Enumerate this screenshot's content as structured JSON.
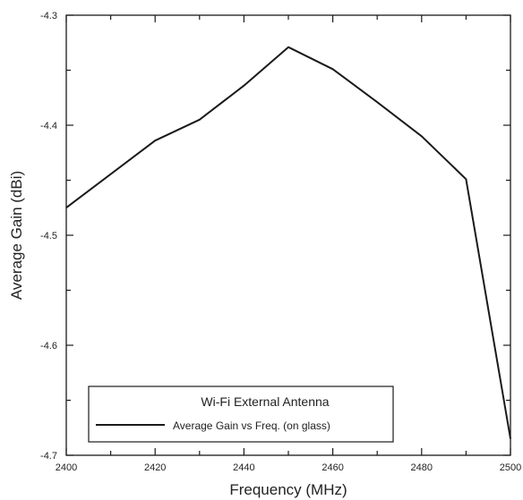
{
  "chart_data": {
    "type": "line",
    "title": "",
    "xlabel": "Frequency (MHz)",
    "ylabel": "Average Gain (dBi)",
    "xlim": [
      2400,
      2500
    ],
    "ylim": [
      -4.7,
      -4.3
    ],
    "x_ticks": [
      "2400",
      "2420",
      "2440",
      "2460",
      "2480",
      "2500"
    ],
    "y_ticks": [
      "-4.3",
      "-4.4",
      "-4.5",
      "-4.6",
      "-4.7"
    ],
    "grid": false,
    "legend_placement": "bottom-left",
    "legend_title": "Wi-Fi External Antenna",
    "series": [
      {
        "name": "Average Gain vs Freq. (on glass)",
        "color": "#1a1a1a",
        "x": [
          2400,
          2420,
          2430,
          2440,
          2450,
          2460,
          2470,
          2480,
          2490,
          2500
        ],
        "y": [
          -4.475,
          -4.414,
          -4.395,
          -4.364,
          -4.329,
          -4.349,
          -4.379,
          -4.41,
          -4.449,
          -4.685
        ]
      }
    ]
  }
}
